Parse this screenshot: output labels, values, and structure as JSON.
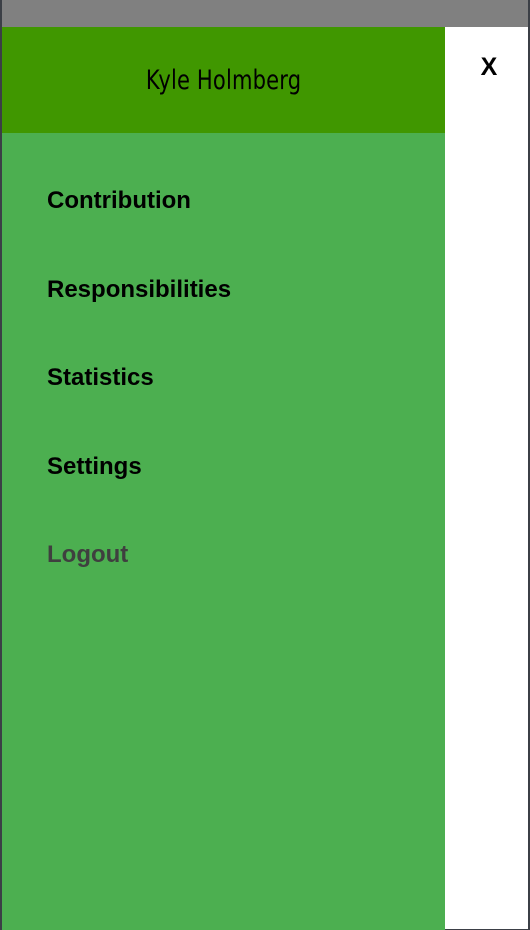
{
  "drawer": {
    "user_name": "Kyle Holmberg",
    "menu": [
      {
        "label": "Contribution"
      },
      {
        "label": "Responsibilities"
      },
      {
        "label": "Statistics"
      },
      {
        "label": "Settings"
      },
      {
        "label": "Logout"
      }
    ]
  },
  "close_label": "X",
  "colors": {
    "status_bar": "#808080",
    "drawer_header": "#409700",
    "drawer_body": "#4caf50",
    "menu_text": "#000000",
    "logout_text": "#3f3f3f"
  }
}
